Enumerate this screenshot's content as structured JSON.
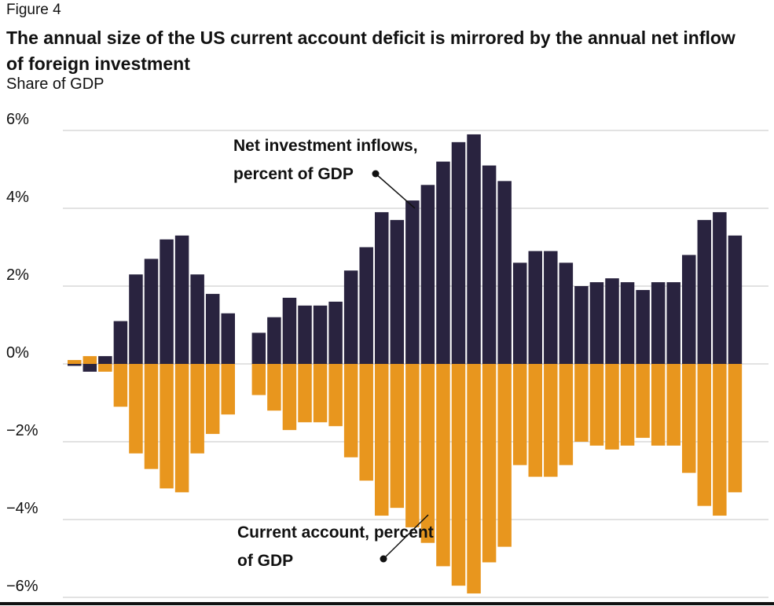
{
  "figure_label": "Figure 4",
  "chart_data": {
    "type": "bar",
    "title": "The annual size of the US current account deficit is mirrored by the annual net inflow of foreign investment",
    "subtitle": "Share of GDP",
    "ylim": [
      -6,
      6
    ],
    "yticks": [
      {
        "value": 6,
        "label": "6%"
      },
      {
        "value": 4,
        "label": "4%"
      },
      {
        "value": 2,
        "label": "2%"
      },
      {
        "value": 0,
        "label": "0%"
      },
      {
        "value": -2,
        "label": "−2%"
      },
      {
        "value": -4,
        "label": "−4%"
      },
      {
        "value": -6,
        "label": "−6%"
      }
    ],
    "grid": true,
    "series": [
      {
        "name": "Net investment inflows, percent of GDP",
        "color": "#29233f",
        "values": [
          -0.05,
          -0.2,
          0.2,
          1.1,
          2.3,
          2.7,
          3.2,
          3.3,
          2.3,
          1.8,
          1.3,
          null,
          0.8,
          1.2,
          1.7,
          1.5,
          1.5,
          1.6,
          2.4,
          3.0,
          3.9,
          3.7,
          4.2,
          4.6,
          5.2,
          5.7,
          5.9,
          5.1,
          4.7,
          2.6,
          2.9,
          2.9,
          2.6,
          2.0,
          2.1,
          2.2,
          2.1,
          1.9,
          2.1,
          2.1,
          2.8,
          3.7,
          3.9,
          3.3
        ]
      },
      {
        "name": "Current account, percent of GDP",
        "color": "#e8961e",
        "values": [
          0.1,
          0.2,
          -0.2,
          -1.1,
          -2.3,
          -2.7,
          -3.2,
          -3.3,
          -2.3,
          -1.8,
          -1.3,
          null,
          -0.8,
          -1.2,
          -1.7,
          -1.5,
          -1.5,
          -1.6,
          -2.4,
          -3.0,
          -3.9,
          -3.7,
          -4.2,
          -4.6,
          -5.2,
          -5.7,
          -5.9,
          -5.1,
          -4.7,
          -2.6,
          -2.9,
          -2.9,
          -2.6,
          -2.0,
          -2.1,
          -2.2,
          -2.1,
          -1.9,
          -2.1,
          -2.1,
          -2.8,
          -3.65,
          -3.9,
          -3.3
        ]
      }
    ]
  }
}
